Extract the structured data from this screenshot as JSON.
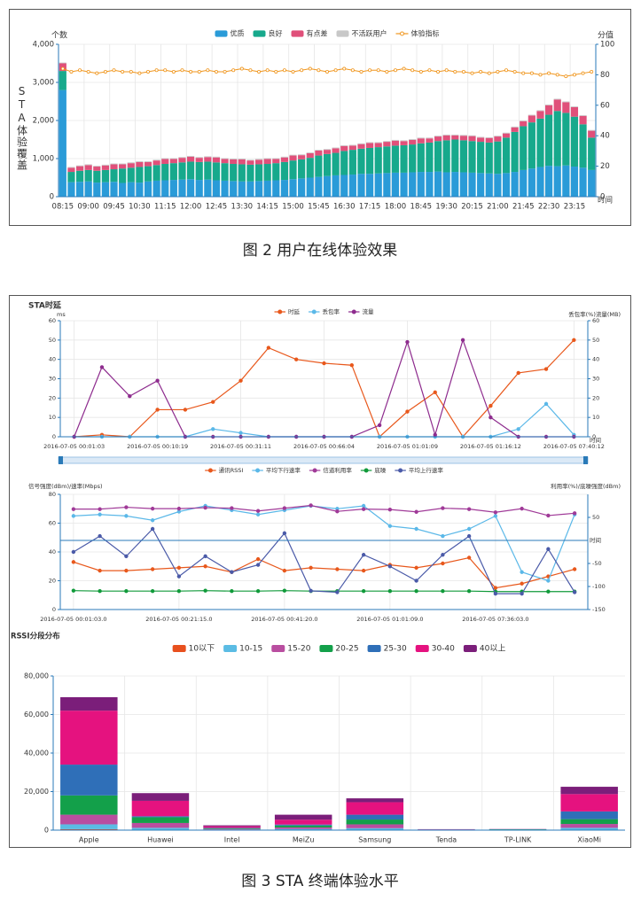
{
  "chart_data": [
    {
      "type": "bar",
      "stacked": true,
      "y_axis_label": "个数",
      "y2_axis_label": "分值",
      "side_label": "STA体验覆盖",
      "x_axis_label": "时间",
      "categories": [
        "08:15",
        null,
        null,
        "09:00",
        null,
        null,
        "09:45",
        null,
        null,
        "10:30",
        null,
        null,
        "11:15",
        null,
        null,
        "12:00",
        null,
        null,
        "12:45",
        null,
        null,
        "13:30",
        null,
        null,
        "14:15",
        null,
        null,
        "15:00",
        null,
        null,
        "15:45",
        null,
        null,
        "16:30",
        null,
        null,
        "17:15",
        null,
        null,
        "18:00",
        null,
        null,
        "18:45",
        null,
        null,
        "19:30",
        null,
        null,
        "20:15",
        null,
        null,
        "21:00",
        null,
        null,
        "21:45",
        null,
        null,
        "22:30",
        null,
        null,
        "23:15",
        null,
        null
      ],
      "series": [
        {
          "name": "优质",
          "color": "#2a9bd8",
          "values": [
            2800,
            380,
            390,
            400,
            370,
            380,
            390,
            360,
            380,
            370,
            400,
            420,
            430,
            440,
            450,
            460,
            440,
            450,
            430,
            420,
            410,
            400,
            400,
            410,
            420,
            430,
            440,
            460,
            480,
            500,
            520,
            540,
            560,
            570,
            580,
            600,
            600,
            610,
            620,
            630,
            630,
            640,
            650,
            650,
            660,
            640,
            650,
            640,
            630,
            620,
            610,
            600,
            620,
            650,
            700,
            740,
            780,
            810,
            800,
            820,
            790,
            760,
            700
          ]
        },
        {
          "name": "良好",
          "color": "#17a98c",
          "values": [
            500,
            270,
            290,
            300,
            310,
            320,
            330,
            380,
            380,
            410,
            400,
            410,
            430,
            440,
            450,
            460,
            470,
            470,
            470,
            460,
            450,
            450,
            440,
            440,
            440,
            450,
            470,
            490,
            500,
            520,
            560,
            580,
            590,
            630,
            650,
            660,
            680,
            690,
            700,
            710,
            720,
            730,
            750,
            770,
            800,
            840,
            850,
            840,
            830,
            820,
            810,
            850,
            930,
            1050,
            1150,
            1210,
            1270,
            1340,
            1450,
            1380,
            1310,
            1140,
            850
          ]
        },
        {
          "name": "有点差",
          "color": "#e0507a",
          "values": [
            200,
            110,
            120,
            130,
            110,
            120,
            130,
            110,
            120,
            130,
            110,
            120,
            130,
            110,
            120,
            130,
            110,
            120,
            130,
            110,
            120,
            130,
            110,
            120,
            130,
            110,
            120,
            130,
            110,
            120,
            130,
            110,
            120,
            130,
            110,
            120,
            130,
            110,
            120,
            130,
            110,
            120,
            130,
            110,
            120,
            130,
            110,
            120,
            130,
            110,
            120,
            130,
            110,
            120,
            130,
            180,
            200,
            250,
            300,
            280,
            250,
            220,
            180
          ]
        },
        {
          "name": "不活跃用户",
          "color": "#c8c8c8",
          "values": [
            20,
            20,
            20,
            20,
            20,
            20,
            20,
            20,
            20,
            20,
            20,
            20,
            20,
            20,
            20,
            20,
            20,
            20,
            20,
            20,
            20,
            20,
            20,
            20,
            20,
            20,
            20,
            20,
            20,
            20,
            20,
            20,
            20,
            20,
            20,
            20,
            20,
            20,
            20,
            20,
            20,
            20,
            20,
            20,
            20,
            20,
            20,
            20,
            20,
            20,
            20,
            20,
            20,
            20,
            20,
            20,
            20,
            20,
            20,
            20,
            20,
            20,
            20
          ]
        },
        {
          "name": "体验指标",
          "type": "line",
          "axis": "y2",
          "color": "#f0961e",
          "values": [
            84,
            82,
            83,
            82,
            81,
            82,
            83,
            82,
            82,
            81,
            82,
            83,
            83,
            82,
            83,
            82,
            82,
            83,
            82,
            82,
            83,
            84,
            83,
            82,
            83,
            82,
            83,
            82,
            83,
            84,
            83,
            82,
            83,
            84,
            83,
            82,
            83,
            83,
            82,
            83,
            84,
            83,
            82,
            83,
            82,
            83,
            82,
            82,
            81,
            82,
            81,
            82,
            83,
            82,
            81,
            81,
            80,
            81,
            80,
            79,
            80,
            81,
            82
          ]
        }
      ],
      "ylim": [
        0,
        4000
      ],
      "yticks": [
        0,
        {
          "value": 1000,
          "label": "1,000"
        },
        {
          "value": 2000,
          "label": "2,000"
        },
        {
          "value": 3000,
          "label": "3,000"
        },
        {
          "value": 4000,
          "label": "4,000"
        }
      ],
      "y2lim": [
        0,
        100
      ],
      "y2ticks": [
        0,
        20,
        40,
        60,
        80,
        100
      ],
      "grid": true,
      "legend": "top"
    },
    {
      "type": "line",
      "title": "STA时延",
      "y_axis_label": "ms",
      "y2_axis_label": "丢包率(%)流量(MB)",
      "x_axis_label": "时间",
      "categories": [
        "2016-07-05 00:01:03",
        null,
        null,
        "2016-07-05 00:10:19",
        null,
        null,
        "2016-07-05 00:31:11",
        null,
        null,
        "2016-07-05 00:66:04",
        null,
        null,
        "2016-07-05 01:01:09",
        null,
        null,
        "2016-07-05 01:16:12",
        null,
        null,
        "2016-07-05 07:40:12"
      ],
      "series": [
        {
          "name": "时延",
          "color": "#e8581c",
          "values": [
            0,
            1,
            0,
            14,
            14,
            18,
            29,
            46,
            40,
            38,
            37,
            0,
            13,
            23,
            0,
            16,
            33,
            35,
            50
          ]
        },
        {
          "name": "丢包率",
          "color": "#5bb8e8",
          "axis": "y2",
          "values": [
            0,
            0,
            0,
            0,
            0,
            4,
            2,
            0,
            0,
            0,
            0,
            0,
            0,
            0,
            0,
            0,
            4,
            17,
            1
          ]
        },
        {
          "name": "流量",
          "color": "#8e2c8e",
          "axis": "y2",
          "values": [
            0,
            36,
            21,
            29,
            0,
            0,
            0,
            0,
            0,
            0,
            0,
            6,
            49,
            1,
            50,
            10,
            0,
            0,
            0
          ]
        }
      ],
      "ylim": [
        0,
        60
      ],
      "yticks": [
        0,
        10,
        20,
        30,
        40,
        50,
        60
      ],
      "y2lim": [
        0,
        60
      ],
      "y2ticks": [
        0,
        10,
        20,
        30,
        40,
        50,
        60
      ],
      "grid": true,
      "legend": "top"
    },
    {
      "type": "line",
      "y_axis_label": "信号强度(dBm)/速率(Mbps)",
      "y2_axis_label": "利用率(%)/底噪强度(dBm)",
      "x_axis_label": "时间",
      "categories": [
        "2016-07-05 00:01:03.0",
        null,
        null,
        null,
        "2016-07-05 00:21:15.0",
        null,
        null,
        null,
        "2016-07-05 00:41:20.0",
        null,
        null,
        null,
        "2016-07-05 01:01:09.0",
        null,
        null,
        null,
        "2016-07-05 07:36:03.0",
        null,
        null,
        null
      ],
      "series": [
        {
          "name": "通讯RSSI",
          "color": "#e8581c",
          "values": [
            33,
            27,
            27,
            28,
            29,
            30,
            26,
            35,
            27,
            29,
            28,
            27,
            31,
            29,
            32,
            36,
            15,
            18,
            23,
            28
          ]
        },
        {
          "name": "平均下行速率",
          "color": "#5bb8e8",
          "values": [
            65,
            66,
            65,
            62,
            68,
            72,
            69,
            66,
            69,
            72,
            70,
            72,
            58,
            56,
            51,
            56,
            65,
            26,
            20,
            66
          ]
        },
        {
          "name": "信道利用率",
          "color": "#a03a98",
          "axis": "y2",
          "values": [
            68,
            68,
            72,
            69,
            69,
            71,
            70,
            64,
            70,
            76,
            63,
            68,
            67,
            62,
            70,
            68,
            61,
            69,
            54,
            59
          ]
        },
        {
          "name": "底噪",
          "color": "#109a3a",
          "axis": "y2",
          "values": [
            -109,
            -110,
            -110,
            -110,
            -110,
            -109,
            -110,
            -110,
            -109,
            -110,
            -110,
            -110,
            -110,
            -110,
            -110,
            -110,
            -111,
            -111,
            -111,
            -111
          ]
        },
        {
          "name": "平均上行速率",
          "color": "#4a5aa8",
          "values": [
            40,
            51,
            37,
            56,
            23,
            37,
            26,
            31,
            53,
            13,
            12,
            38,
            30,
            20,
            38,
            51,
            11,
            11,
            42,
            12
          ]
        }
      ],
      "ylim": [
        0,
        80
      ],
      "yticks": [
        0,
        20,
        40,
        60,
        80
      ],
      "y2lim": [
        -150,
        100
      ],
      "y2ticks": [
        -150,
        -100,
        -50,
        50
      ],
      "grid": true,
      "legend": "top"
    },
    {
      "type": "bar",
      "stacked": true,
      "title": "RSSI分段分布",
      "categories": [
        "Apple",
        "Huawei",
        "Intel",
        "MeiZu",
        "Samsung",
        "Tenda",
        "TP-LINK",
        "XiaoMi"
      ],
      "series": [
        {
          "name": "10以下",
          "color": "#e8501e",
          "values": [
            500,
            200,
            0,
            100,
            200,
            0,
            0,
            200
          ]
        },
        {
          "name": "10-15",
          "color": "#5bbce4",
          "values": [
            2500,
            1000,
            300,
            500,
            800,
            0,
            0,
            1000
          ]
        },
        {
          "name": "15-20",
          "color": "#b94ea0",
          "values": [
            5000,
            2500,
            300,
            800,
            2000,
            100,
            100,
            2000
          ]
        },
        {
          "name": "20-25",
          "color": "#13a04a",
          "values": [
            10000,
            3000,
            300,
            1000,
            2500,
            100,
            300,
            2500
          ]
        },
        {
          "name": "25-30",
          "color": "#2f6fb8",
          "values": [
            16000,
            500,
            300,
            500,
            2500,
            100,
            100,
            4000
          ]
        },
        {
          "name": "30-40",
          "color": "#e5127f",
          "values": [
            28000,
            8000,
            800,
            2500,
            6500,
            100,
            50,
            9000
          ]
        },
        {
          "name": "40以上",
          "color": "#7b1e7a",
          "values": [
            7000,
            4000,
            500,
            2600,
            2000,
            100,
            50,
            3800
          ]
        }
      ],
      "ylim": [
        0,
        80000
      ],
      "yticks": [
        0,
        {
          "value": 20000,
          "label": "20,000"
        },
        {
          "value": 40000,
          "label": "40,000"
        },
        {
          "value": 60000,
          "label": "60,000"
        },
        {
          "value": 80000,
          "label": "80,000"
        }
      ],
      "grid": true,
      "legend": "top"
    }
  ],
  "captions": [
    "图 2 用户在线体验效果",
    "图 3 STA 终端体验水平"
  ]
}
